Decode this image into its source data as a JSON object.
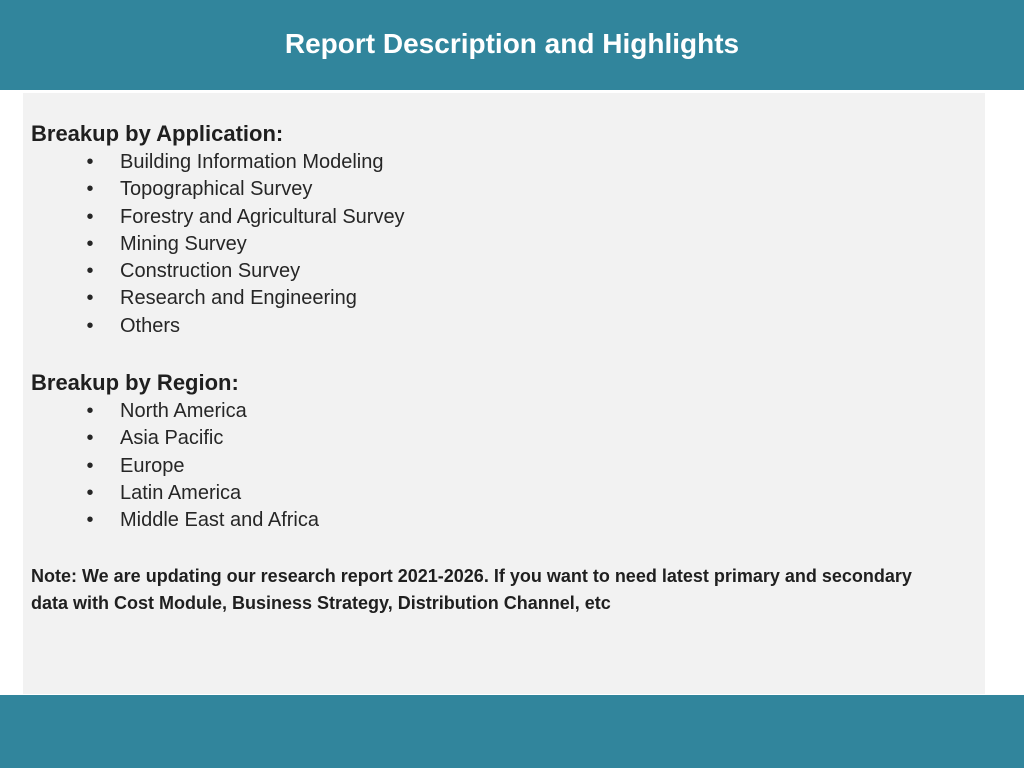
{
  "header": {
    "title": "Report Description and Highlights"
  },
  "sections": {
    "application": {
      "heading": "Breakup by Application:",
      "items": [
        "Building Information Modeling",
        "Topographical Survey",
        "Forestry and Agricultural Survey",
        "Mining Survey",
        "Construction Survey",
        "Research and Engineering",
        "Others"
      ]
    },
    "region": {
      "heading": "Breakup by Region:",
      "items": [
        "North America",
        "Asia Pacific",
        "Europe",
        "Latin America",
        "Middle East and Africa"
      ]
    }
  },
  "bullet_glyph": "•",
  "note": "Note: We are updating our research report 2021-2026. If you want to need latest primary and secondary data with Cost Module, Business Strategy, Distribution Channel, etc",
  "colors": {
    "accent": "#31859c",
    "panel": "#f2f2f2"
  }
}
